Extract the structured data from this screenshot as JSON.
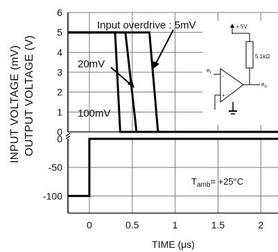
{
  "chart_data": [
    {
      "id": "top",
      "type": "line",
      "ylabel": "OUTPUT VOLTAGE (V)",
      "x_ticks": [
        0,
        0.5,
        1,
        1.5,
        2
      ],
      "y_ticks": [
        0,
        1,
        2,
        3,
        4,
        5,
        6
      ],
      "xlim": [
        -0.25,
        2.2
      ],
      "ylim": [
        0,
        6
      ],
      "grid": true,
      "series": [
        {
          "name": "Input overdrive : 5mV",
          "x": [
            -0.25,
            0.7,
            0.8,
            2.2
          ],
          "y": [
            5,
            5,
            0,
            0
          ]
        },
        {
          "name": "20mV",
          "x": [
            -0.25,
            0.42,
            0.55,
            2.2
          ],
          "y": [
            5,
            5,
            0,
            0
          ]
        },
        {
          "name": "100mV",
          "x": [
            -0.25,
            0.3,
            0.36,
            2.2
          ],
          "y": [
            5,
            5,
            0,
            0
          ]
        }
      ],
      "annotations": [
        {
          "text": "Input overdrive : 5mV"
        },
        {
          "text": "20mV"
        },
        {
          "text": "100mV"
        }
      ]
    },
    {
      "id": "bottom",
      "type": "line",
      "ylabel": "INPUT VOLTAGE (mV)",
      "xlabel": "TIME (μs)",
      "x_ticks": [
        0,
        0.5,
        1,
        1.5,
        2
      ],
      "x_tick_labels": [
        "0",
        "0.5",
        "1",
        "1.5",
        "2"
      ],
      "y_ticks": [
        0,
        -50,
        -100
      ],
      "xlim": [
        -0.25,
        2.2
      ],
      "ylim": [
        -130,
        0
      ],
      "grid": true,
      "series": [
        {
          "name": "Input",
          "x": [
            -0.25,
            0,
            0,
            2.2
          ],
          "y": [
            -100,
            -100,
            0,
            0
          ]
        }
      ],
      "annotations": [
        {
          "text_main": "T",
          "text_sub": "amb",
          "text_tail": "= +25°C"
        }
      ]
    }
  ],
  "inset": {
    "supply_label": "+ 5V",
    "resistor_label": "5.1kΩ",
    "input_label_main": "e",
    "input_label_sub": "I",
    "output_label_main": "e",
    "output_label_sub": "o",
    "minus_label": "-",
    "plus_label": "+"
  }
}
